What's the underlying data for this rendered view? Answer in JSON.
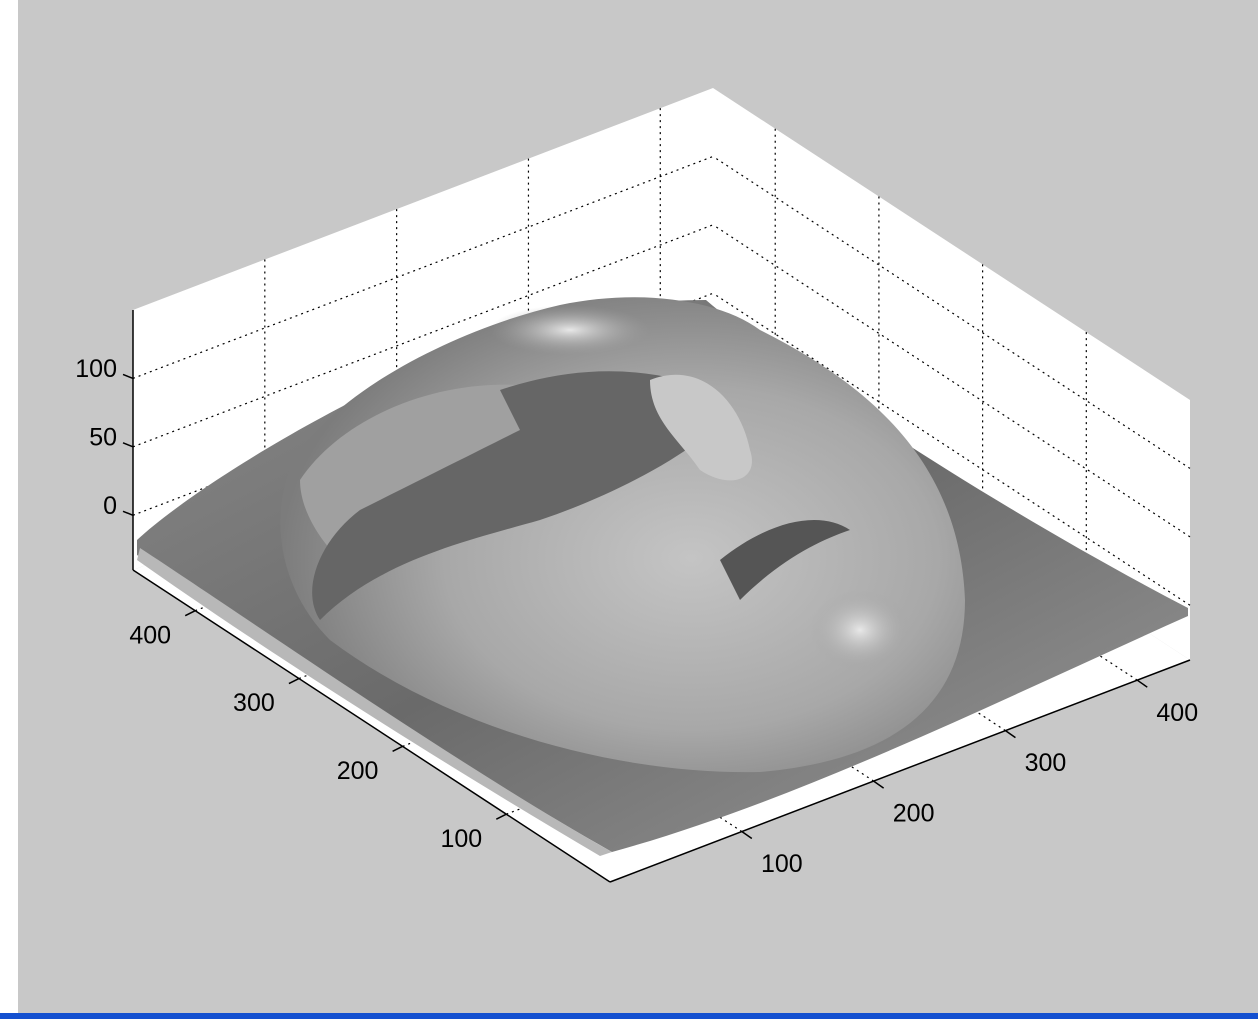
{
  "chart_data": {
    "type": "surface",
    "xlim": [
      0,
      440
    ],
    "ylim": [
      0,
      460
    ],
    "zlim": [
      -40,
      150
    ],
    "xticks": [
      100,
      200,
      300,
      400
    ],
    "yticks": [
      100,
      200,
      300,
      400
    ],
    "zticks": [
      0,
      50,
      100
    ],
    "grid": true
  }
}
